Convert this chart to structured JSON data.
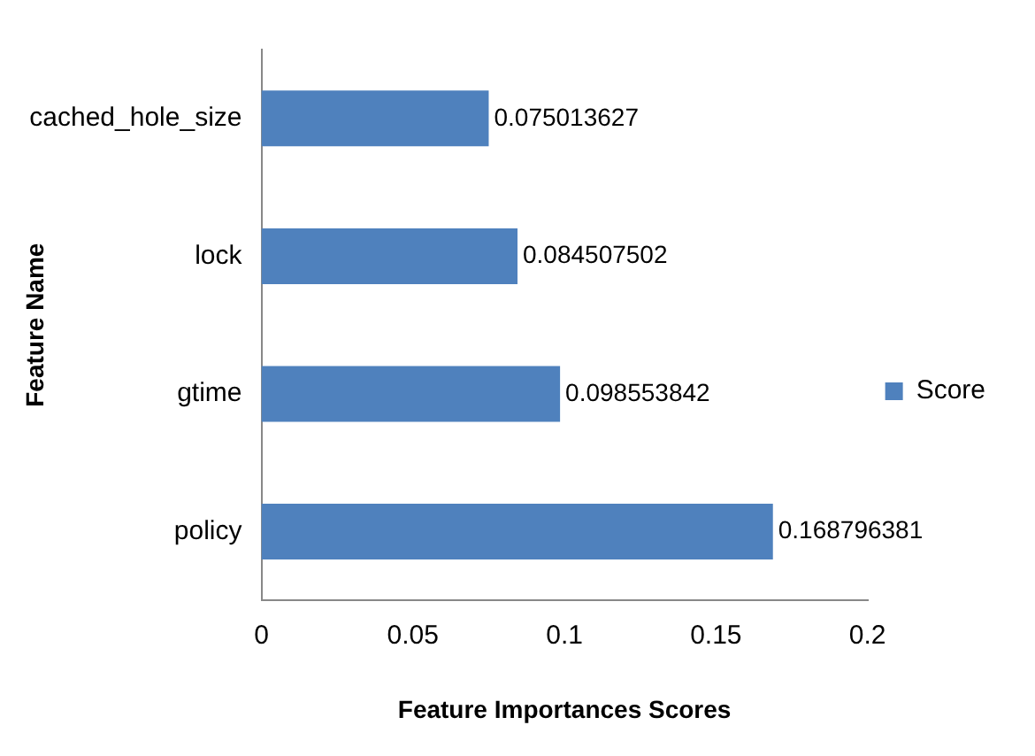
{
  "chart_data": {
    "type": "bar",
    "orientation": "horizontal",
    "xlabel": "Feature Importances Scores",
    "ylabel": "Feature Name",
    "categories": [
      "cached_hole_size",
      "lock",
      "gtime",
      "policy"
    ],
    "series": [
      {
        "name": "Score",
        "color": "#4f81bd",
        "values": [
          0.075013627,
          0.084507502,
          0.098553842,
          0.168796381
        ]
      }
    ],
    "xlim": [
      0,
      0.2
    ],
    "xticks": [
      0,
      0.05,
      0.1,
      0.15,
      0.2
    ],
    "grid": false,
    "legend": "right",
    "data_labels": true
  }
}
